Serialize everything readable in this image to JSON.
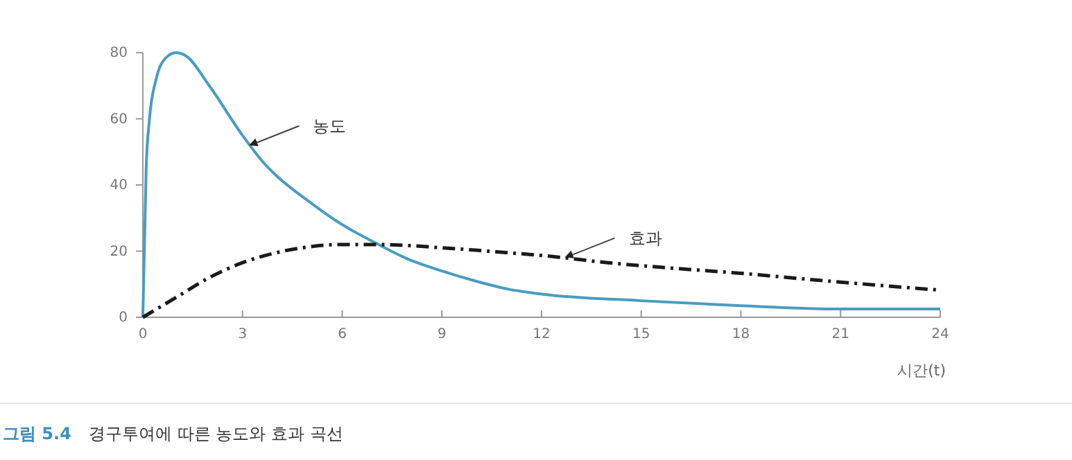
{
  "chart_data": {
    "type": "line",
    "title": "그림 5.4",
    "subtitle": "경구투여에 따른 농도와 효과 곡선",
    "xlabel": "시간(t)",
    "xlim": [
      0,
      24
    ],
    "xticks": [
      0,
      3,
      6,
      9,
      12,
      15,
      18,
      21,
      24
    ],
    "ylim": [
      0,
      80
    ],
    "yticks": [
      0,
      20,
      40,
      60,
      80
    ],
    "grid": false,
    "series": [
      {
        "color": "#4a9cc0",
        "line_style": "solid",
        "x": [
          0,
          0.1,
          0.2,
          0.4,
          0.7,
          1,
          1.3,
          2,
          3,
          3.7,
          4,
          5,
          6,
          7,
          8,
          9,
          10,
          11,
          12,
          15,
          18,
          21,
          24
        ],
        "values": [
          0,
          45,
          60,
          72,
          78.5,
          80,
          79,
          70,
          55,
          46,
          43,
          35,
          28,
          22.5,
          17.5,
          14,
          11,
          8.5,
          7,
          5,
          3.5,
          2.5,
          2.5
        ]
      },
      {
        "color": "#1a1a1a",
        "line_style": "dashdot",
        "x": [
          0,
          1,
          2,
          3,
          4,
          5,
          6,
          7,
          8,
          9,
          10,
          11,
          12,
          14,
          16,
          18,
          20,
          22,
          24
        ],
        "values": [
          0,
          6,
          12,
          16.5,
          19.5,
          21.3,
          22,
          22,
          21.7,
          21,
          20.3,
          19.5,
          18.7,
          16.5,
          14.8,
          13.3,
          11.5,
          9.8,
          8.2
        ]
      }
    ],
    "annotations": [
      {
        "text": "농도",
        "x": 3.2,
        "y": 52
      },
      {
        "text": "효과",
        "x": 12.7,
        "y": 18.1
      }
    ]
  }
}
